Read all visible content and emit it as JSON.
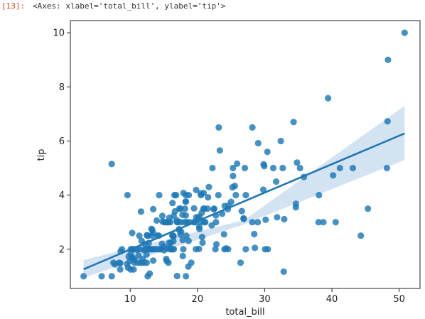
{
  "cell": {
    "prompt": "[13]:",
    "output_repr": "<Axes: xlabel='total_bill', ylabel='tip'>"
  },
  "colors": {
    "point": "#1f77b4",
    "line": "#1f77b4",
    "ci_band": "#c6d9ee",
    "axes_frame": "#222222",
    "prompt": "#d84315"
  },
  "chart_data": {
    "type": "scatter",
    "xlabel": "total_bill",
    "ylabel": "tip",
    "xlim": [
      1.1,
      53.1
    ],
    "ylim": [
      0.55,
      10.45
    ],
    "xticks": [
      10,
      20,
      30,
      40,
      50
    ],
    "yticks": [
      2,
      4,
      6,
      8,
      10
    ],
    "grid": false,
    "legend": "none",
    "regression": {
      "x_start": 3.07,
      "x_end": 50.81,
      "y_start": 1.26,
      "y_end": 6.28,
      "ci_lower_start": 0.95,
      "ci_upper_start": 1.6,
      "ci_lower_mid": 2.92,
      "ci_upper_mid": 3.08,
      "ci_lower_end": 5.3,
      "ci_upper_end": 7.3
    },
    "points": [
      [
        3.07,
        1.0
      ],
      [
        5.75,
        1.0
      ],
      [
        7.25,
        1.0
      ],
      [
        7.25,
        5.15
      ],
      [
        7.5,
        1.5
      ],
      [
        7.74,
        1.44
      ],
      [
        8.35,
        1.5
      ],
      [
        8.51,
        1.25
      ],
      [
        8.52,
        1.48
      ],
      [
        8.58,
        1.92
      ],
      [
        8.77,
        2.0
      ],
      [
        9.55,
        1.45
      ],
      [
        9.6,
        4.0
      ],
      [
        9.68,
        1.32
      ],
      [
        9.78,
        1.73
      ],
      [
        9.94,
        1.56
      ],
      [
        10.07,
        1.25
      ],
      [
        10.07,
        1.83
      ],
      [
        10.09,
        2.0
      ],
      [
        10.27,
        1.71
      ],
      [
        10.29,
        2.6
      ],
      [
        10.33,
        1.67
      ],
      [
        10.33,
        2.0
      ],
      [
        10.34,
        1.66
      ],
      [
        10.34,
        2.0
      ],
      [
        10.51,
        1.25
      ],
      [
        10.59,
        1.61
      ],
      [
        10.63,
        2.0
      ],
      [
        10.65,
        1.5
      ],
      [
        11.02,
        1.98
      ],
      [
        11.17,
        1.5
      ],
      [
        11.24,
        1.76
      ],
      [
        11.35,
        2.5
      ],
      [
        11.38,
        2.0
      ],
      [
        11.59,
        1.5
      ],
      [
        11.61,
        3.39
      ],
      [
        11.69,
        2.31
      ],
      [
        11.87,
        1.63
      ],
      [
        12.02,
        1.97
      ],
      [
        12.03,
        1.5
      ],
      [
        12.16,
        2.2
      ],
      [
        12.26,
        2.0
      ],
      [
        12.43,
        1.8
      ],
      [
        12.46,
        1.5
      ],
      [
        12.48,
        2.52
      ],
      [
        12.54,
        2.5
      ],
      [
        12.6,
        1.0
      ],
      [
        12.66,
        2.5
      ],
      [
        12.69,
        2.0
      ],
      [
        12.74,
        2.01
      ],
      [
        12.76,
        2.23
      ],
      [
        12.9,
        1.1
      ],
      [
        13.0,
        2.0
      ],
      [
        13.03,
        2.0
      ],
      [
        13.13,
        2.0
      ],
      [
        13.16,
        2.75
      ],
      [
        13.27,
        2.5
      ],
      [
        13.28,
        2.72
      ],
      [
        13.37,
        2.0
      ],
      [
        13.39,
        2.61
      ],
      [
        13.42,
        3.48
      ],
      [
        13.42,
        1.58
      ],
      [
        13.51,
        2.0
      ],
      [
        13.81,
        2.0
      ],
      [
        13.94,
        3.06
      ],
      [
        14.07,
        2.5
      ],
      [
        14.15,
        2.0
      ],
      [
        14.26,
        2.5
      ],
      [
        14.31,
        4.0
      ],
      [
        14.48,
        2.0
      ],
      [
        14.52,
        2.0
      ],
      [
        14.73,
        2.2
      ],
      [
        14.78,
        3.23
      ],
      [
        14.83,
        3.02
      ],
      [
        15.01,
        2.09
      ],
      [
        15.04,
        1.96
      ],
      [
        15.06,
        3.0
      ],
      [
        15.36,
        1.64
      ],
      [
        15.38,
        3.0
      ],
      [
        15.42,
        1.57
      ],
      [
        15.48,
        2.02
      ],
      [
        15.53,
        3.0
      ],
      [
        15.69,
        1.5
      ],
      [
        15.69,
        3.0
      ],
      [
        15.77,
        2.23
      ],
      [
        15.81,
        3.16
      ],
      [
        15.95,
        2.0
      ],
      [
        15.98,
        2.03
      ],
      [
        15.98,
        3.0
      ],
      [
        16.0,
        2.0
      ],
      [
        16.04,
        2.24
      ],
      [
        16.21,
        2.0
      ],
      [
        16.27,
        2.5
      ],
      [
        16.29,
        3.71
      ],
      [
        16.31,
        2.0
      ],
      [
        16.4,
        2.5
      ],
      [
        16.43,
        2.3
      ],
      [
        16.45,
        2.47
      ],
      [
        16.47,
        3.23
      ],
      [
        16.49,
        2.0
      ],
      [
        16.58,
        4.0
      ],
      [
        16.66,
        3.4
      ],
      [
        16.82,
        4.0
      ],
      [
        16.93,
        3.07
      ],
      [
        16.97,
        1.01
      ],
      [
        16.99,
        3.0
      ],
      [
        17.07,
        3.0
      ],
      [
        17.26,
        2.74
      ],
      [
        17.29,
        2.71
      ],
      [
        17.31,
        3.5
      ],
      [
        17.46,
        2.54
      ],
      [
        17.47,
        3.5
      ],
      [
        17.51,
        3.0
      ],
      [
        17.59,
        2.64
      ],
      [
        17.78,
        3.27
      ],
      [
        17.81,
        2.34
      ],
      [
        17.82,
        1.75
      ],
      [
        17.89,
        2.0
      ],
      [
        17.92,
        4.08
      ],
      [
        18.04,
        3.0
      ],
      [
        18.15,
        3.5
      ],
      [
        18.24,
        3.76
      ],
      [
        18.26,
        3.25
      ],
      [
        18.28,
        4.0
      ],
      [
        18.29,
        3.76
      ],
      [
        18.29,
        1.0
      ],
      [
        18.35,
        2.5
      ],
      [
        18.43,
        3.0
      ],
      [
        18.64,
        1.36
      ],
      [
        18.69,
        2.31
      ],
      [
        18.71,
        4.0
      ],
      [
        18.78,
        3.0
      ],
      [
        19.08,
        1.5
      ],
      [
        19.44,
        3.0
      ],
      [
        19.49,
        3.51
      ],
      [
        19.65,
        3.0
      ],
      [
        19.77,
        2.0
      ],
      [
        19.81,
        4.19
      ],
      [
        19.82,
        3.18
      ],
      [
        20.08,
        3.15
      ],
      [
        20.23,
        2.01
      ],
      [
        20.27,
        2.83
      ],
      [
        20.29,
        2.75
      ],
      [
        20.29,
        3.21
      ],
      [
        20.45,
        3.0
      ],
      [
        20.49,
        4.06
      ],
      [
        20.53,
        4.0
      ],
      [
        20.65,
        3.35
      ],
      [
        20.69,
        2.45
      ],
      [
        20.76,
        2.24
      ],
      [
        20.9,
        3.5
      ],
      [
        20.92,
        4.08
      ],
      [
        21.01,
        3.0
      ],
      [
        21.01,
        3.5
      ],
      [
        21.16,
        3.0
      ],
      [
        21.5,
        3.5
      ],
      [
        21.58,
        3.92
      ],
      [
        21.7,
        4.3
      ],
      [
        22.12,
        2.88
      ],
      [
        22.23,
        5.0
      ],
      [
        22.42,
        3.48
      ],
      [
        22.49,
        3.5
      ],
      [
        22.67,
        2.0
      ],
      [
        22.75,
        3.25
      ],
      [
        22.76,
        3.0
      ],
      [
        22.82,
        2.18
      ],
      [
        23.1,
        4.0
      ],
      [
        23.17,
        6.5
      ],
      [
        23.33,
        5.65
      ],
      [
        23.68,
        3.31
      ],
      [
        23.95,
        2.55
      ],
      [
        24.01,
        2.0
      ],
      [
        24.06,
        3.6
      ],
      [
        24.27,
        2.03
      ],
      [
        24.52,
        3.48
      ],
      [
        24.55,
        2.0
      ],
      [
        24.59,
        3.61
      ],
      [
        25.0,
        3.75
      ],
      [
        25.21,
        4.29
      ],
      [
        25.28,
        5.0
      ],
      [
        25.29,
        4.71
      ],
      [
        25.56,
        4.34
      ],
      [
        25.71,
        4.0
      ],
      [
        25.89,
        5.16
      ],
      [
        26.41,
        1.5
      ],
      [
        26.59,
        3.41
      ],
      [
        26.86,
        3.14
      ],
      [
        26.88,
        3.12
      ],
      [
        27.05,
        5.0
      ],
      [
        27.18,
        2.0
      ],
      [
        27.2,
        4.0
      ],
      [
        28.15,
        3.0
      ],
      [
        28.17,
        6.5
      ],
      [
        28.44,
        2.56
      ],
      [
        28.55,
        2.05
      ],
      [
        28.97,
        3.0
      ],
      [
        29.03,
        5.92
      ],
      [
        29.8,
        4.2
      ],
      [
        29.85,
        5.14
      ],
      [
        29.93,
        5.07
      ],
      [
        30.06,
        2.0
      ],
      [
        30.14,
        3.09
      ],
      [
        30.4,
        5.6
      ],
      [
        30.46,
        2.0
      ],
      [
        31.27,
        5.0
      ],
      [
        31.71,
        4.5
      ],
      [
        31.85,
        3.18
      ],
      [
        32.4,
        6.0
      ],
      [
        32.68,
        5.0
      ],
      [
        32.83,
        1.17
      ],
      [
        32.9,
        3.11
      ],
      [
        34.3,
        6.7
      ],
      [
        34.63,
        3.55
      ],
      [
        34.65,
        3.68
      ],
      [
        34.81,
        5.2
      ],
      [
        35.26,
        5.0
      ],
      [
        35.83,
        4.67
      ],
      [
        38.01,
        3.0
      ],
      [
        38.07,
        4.0
      ],
      [
        38.73,
        3.0
      ],
      [
        39.42,
        7.58
      ],
      [
        40.17,
        4.73
      ],
      [
        40.55,
        3.0
      ],
      [
        41.19,
        5.0
      ],
      [
        43.11,
        5.0
      ],
      [
        44.3,
        2.5
      ],
      [
        45.35,
        3.5
      ],
      [
        48.17,
        5.0
      ],
      [
        48.27,
        6.73
      ],
      [
        48.33,
        9.0
      ],
      [
        50.81,
        10.0
      ]
    ]
  }
}
